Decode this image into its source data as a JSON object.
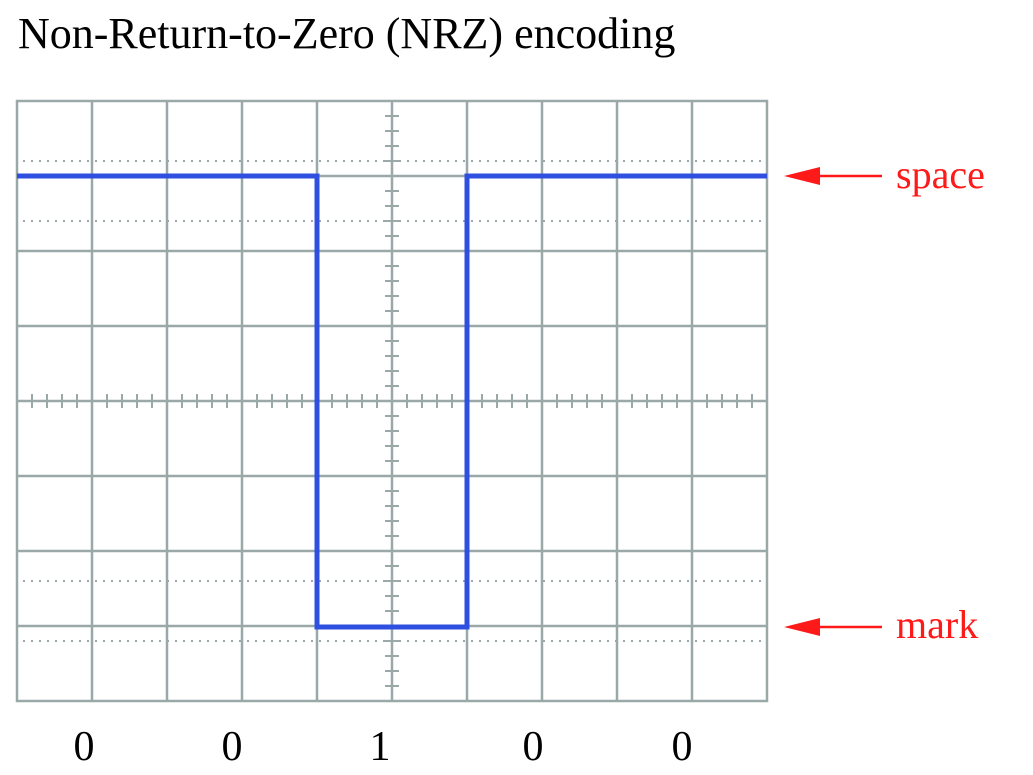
{
  "title": "Non-Return-to-Zero (NRZ) encoding",
  "colors": {
    "grid": "#9aa8a8",
    "signal": "#2f4fe0",
    "annotation": "#ff1a1a",
    "text": "#000000"
  },
  "levels": {
    "space": "space",
    "mark": "mark"
  },
  "bits": [
    "0",
    "0",
    "1",
    "0",
    "0"
  ],
  "grid": {
    "columns": 10,
    "rows": 8
  }
}
